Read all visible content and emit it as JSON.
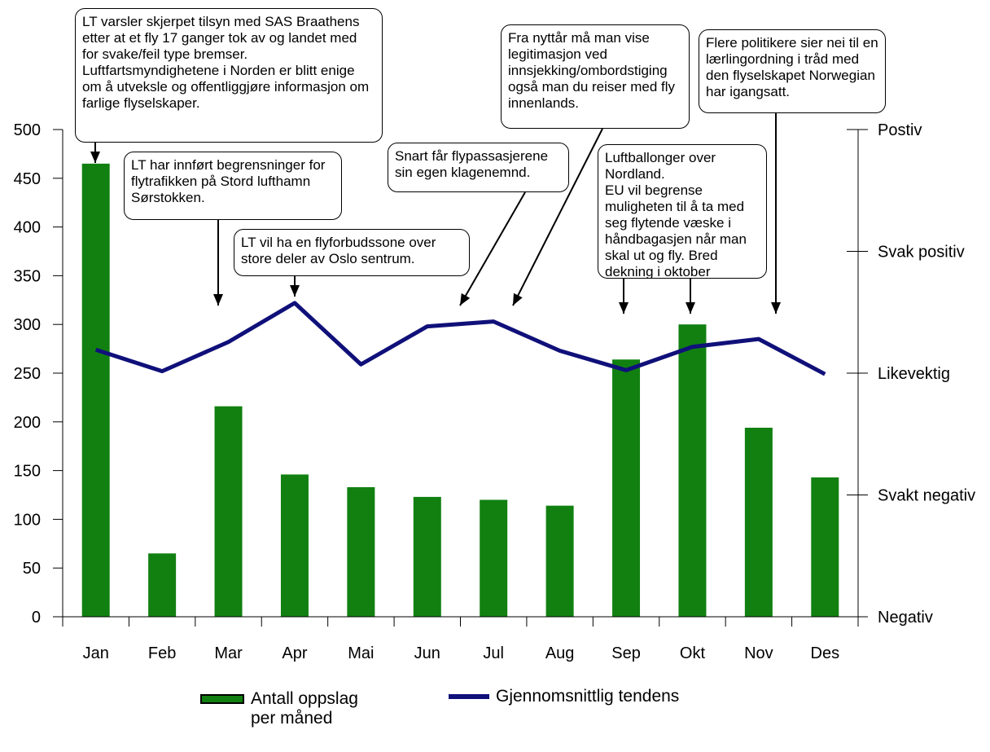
{
  "colors": {
    "bar": "#118011",
    "line": "#10107a",
    "axis": "#000000"
  },
  "chart_data": {
    "type": "bar",
    "categories": [
      "Jan",
      "Feb",
      "Mar",
      "Apr",
      "Mai",
      "Jun",
      "Jul",
      "Aug",
      "Sep",
      "Okt",
      "Nov",
      "Des"
    ],
    "series": [
      {
        "name": "Antall oppslag per måned",
        "type": "bar",
        "axis": "left",
        "values": [
          465,
          65,
          216,
          146,
          133,
          123,
          120,
          114,
          264,
          300,
          194,
          143
        ]
      },
      {
        "name": "Gjennomsnittlig tendens",
        "type": "line",
        "axis": "right",
        "values": [
          274,
          252,
          282,
          322,
          259,
          298,
          303,
          273,
          253,
          277,
          285,
          249
        ]
      }
    ],
    "left_axis": {
      "ylim": [
        0,
        500
      ],
      "ticks": [
        0,
        50,
        100,
        150,
        200,
        250,
        300,
        350,
        400,
        450,
        500
      ]
    },
    "right_axis": {
      "ylim": [
        0,
        500
      ],
      "labels": [
        {
          "value": 0,
          "label": "Negativ"
        },
        {
          "value": 125,
          "label": "Svakt negativ"
        },
        {
          "value": 250,
          "label": "Likevektig"
        },
        {
          "value": 375,
          "label": "Svak positiv"
        },
        {
          "value": 500,
          "label": "Postiv"
        }
      ]
    },
    "annotations": [
      {
        "text": "LT varsler skjerpet tilsyn med SAS Braathens etter at et fly 17 ganger tok av og landet med for svake/feil type bremser.\nLuftfartsmyndighetene i Norden er blitt enige om å utveksle og offentliggjøre informasjon om farlige flyselskaper.",
        "target_month": "Jan"
      },
      {
        "text": "LT har innført begrensninger for flytrafikken på Stord lufthamn Sørstokken.",
        "target_month": "Mar"
      },
      {
        "text": "LT vil ha en flyforbudssone over store deler av Oslo sentrum.",
        "target_month": "Apr"
      },
      {
        "text": "Snart får flypassasjerene sin egen klagenemnd.",
        "target_month": "Jun"
      },
      {
        "text": "Fra nyttår må man vise legitimasjon ved innsjekking/ombordstiging også man du reiser med fly innenlands.",
        "target_month": "Jul"
      },
      {
        "text": "Luftballonger over Nordland.\nEU vil begrense muligheten til å ta med seg flytende væske i håndbagasjen når man skal ut og fly. Bred dekning i oktober",
        "target_month": "Sep"
      },
      {
        "text": "Flere politikere sier nei til en lærlingordning i tråd med den flyselskapet Norwegian har igangsatt.",
        "target_month": "Nov"
      }
    ],
    "legend": [
      "Antall oppslag per måned",
      "Gjennomsnittlig tendens"
    ],
    "legend_position": "bottom"
  }
}
